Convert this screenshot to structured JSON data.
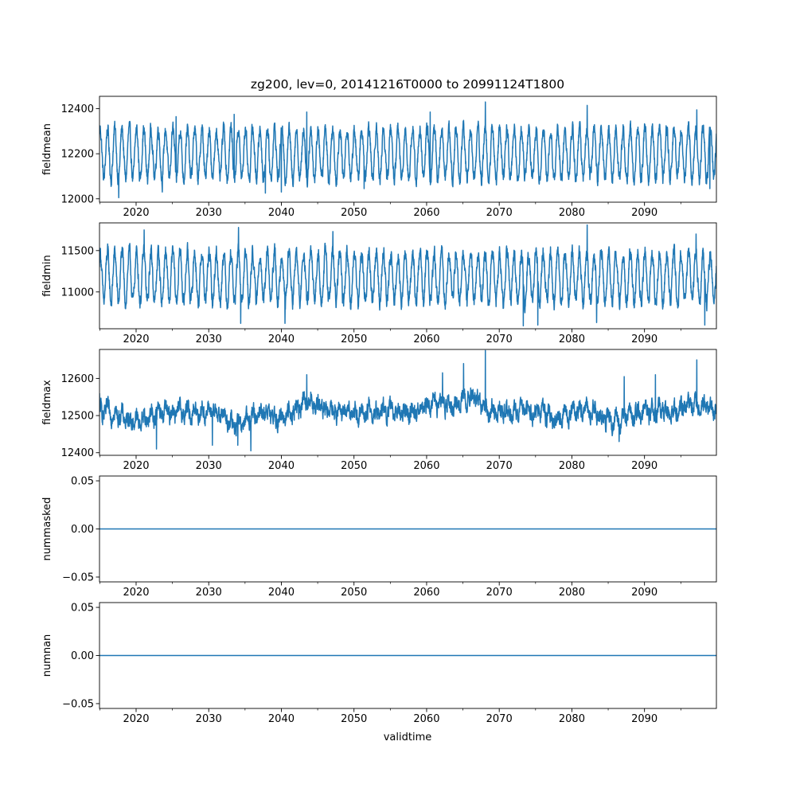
{
  "figure": {
    "title": "zg200, lev=0, 20141216T0000 to 20991124T1800",
    "xlabel": "validtime"
  },
  "colors": {
    "series": "#1f77b4",
    "axes": "#000000",
    "background": "#ffffff"
  },
  "chart_data": [
    {
      "type": "line",
      "ylabel": "fieldmean",
      "xlim": [
        2014.96,
        2099.9
      ],
      "ylim": [
        11985,
        12455
      ],
      "xticks": [
        2020,
        2030,
        2040,
        2050,
        2060,
        2070,
        2080,
        2090
      ],
      "xtick_labels": [
        "2020",
        "2030",
        "2040",
        "2050",
        "2060",
        "2070",
        "2080",
        "2090"
      ],
      "yticks": [
        12000,
        12200,
        12400
      ],
      "ytick_labels": [
        "12000",
        "12200",
        "12400"
      ],
      "grid": false,
      "series": [
        {
          "center": 12200,
          "seasonal_amplitude": 110,
          "noise": 25,
          "start": {
            "x": 2014.96,
            "y": 12290
          },
          "min": {
            "x": 2017.6,
            "y": 12005
          },
          "max": {
            "x": 2068.1,
            "y": 12430
          },
          "peaks": [
            {
              "x": 2025.5,
              "y": 12365
            },
            {
              "x": 2033.5,
              "y": 12375
            },
            {
              "x": 2043.5,
              "y": 12385
            },
            {
              "x": 2060.5,
              "y": 12385
            },
            {
              "x": 2082.1,
              "y": 12415
            },
            {
              "x": 2097.2,
              "y": 12395
            }
          ],
          "troughs": [
            {
              "x": 2037.8,
              "y": 12025
            },
            {
              "x": 2040.0,
              "y": 12030
            },
            {
              "x": 2023.6,
              "y": 12030
            },
            {
              "x": 2051.4,
              "y": 12045
            },
            {
              "x": 2099.0,
              "y": 12045
            }
          ]
        }
      ]
    },
    {
      "type": "line",
      "ylabel": "fieldmin",
      "xlim": [
        2014.96,
        2099.9
      ],
      "ylim": [
        10555,
        11835
      ],
      "xticks": [
        2020,
        2030,
        2040,
        2050,
        2060,
        2070,
        2080,
        2090
      ],
      "xtick_labels": [
        "2020",
        "2030",
        "2040",
        "2050",
        "2060",
        "2070",
        "2080",
        "2090"
      ],
      "yticks": [
        11000,
        11500
      ],
      "ytick_labels": [
        "11000",
        "11500"
      ],
      "grid": false,
      "series": [
        {
          "center": 11180,
          "seasonal_amplitude": 300,
          "noise": 75,
          "start": {
            "x": 2014.96,
            "y": 11300
          },
          "min": {
            "x": 2073.3,
            "y": 10590
          },
          "max": {
            "x": 2082.1,
            "y": 11810
          },
          "peaks": [
            {
              "x": 2034.1,
              "y": 11780
            },
            {
              "x": 2021.1,
              "y": 11750
            },
            {
              "x": 2047.1,
              "y": 11730
            },
            {
              "x": 2097.1,
              "y": 11700
            }
          ],
          "troughs": [
            {
              "x": 2034.4,
              "y": 10620
            },
            {
              "x": 2075.3,
              "y": 10600
            },
            {
              "x": 2083.4,
              "y": 10630
            },
            {
              "x": 2098.3,
              "y": 10600
            },
            {
              "x": 2040.5,
              "y": 10620
            }
          ]
        }
      ]
    },
    {
      "type": "line",
      "ylabel": "fieldmax",
      "xlim": [
        2014.96,
        2099.9
      ],
      "ylim": [
        12393,
        12678
      ],
      "xticks": [
        2020,
        2030,
        2040,
        2050,
        2060,
        2070,
        2080,
        2090
      ],
      "xtick_labels": [
        "2020",
        "2030",
        "2040",
        "2050",
        "2060",
        "2070",
        "2080",
        "2090"
      ],
      "yticks": [
        12400,
        12500,
        12600
      ],
      "ytick_labels": [
        "12400",
        "12500",
        "12600"
      ],
      "grid": false,
      "series": [
        {
          "center": 12510,
          "seasonal_amplitude": 12,
          "noise": 18,
          "start": {
            "x": 2014.96,
            "y": 12560
          },
          "min": {
            "x": 2035.8,
            "y": 12405
          },
          "max": {
            "x": 2068.1,
            "y": 12675
          },
          "peaks": [
            {
              "x": 2065.1,
              "y": 12640
            },
            {
              "x": 2097.2,
              "y": 12650
            },
            {
              "x": 2062.2,
              "y": 12615
            },
            {
              "x": 2043.5,
              "y": 12610
            },
            {
              "x": 2087.2,
              "y": 12605
            },
            {
              "x": 2091.5,
              "y": 12610
            }
          ],
          "troughs": [
            {
              "x": 2022.8,
              "y": 12410
            },
            {
              "x": 2034.0,
              "y": 12420
            },
            {
              "x": 2030.5,
              "y": 12420
            },
            {
              "x": 2086.5,
              "y": 12430
            }
          ],
          "slow_anomalies": [
            {
              "x": 2020.0,
              "width": 4.0,
              "dy": -25
            },
            {
              "x": 2034.0,
              "width": 3.0,
              "dy": -40
            },
            {
              "x": 2039.5,
              "width": 2.0,
              "dy": -20
            },
            {
              "x": 2044.0,
              "width": 3.0,
              "dy": 25
            },
            {
              "x": 2062.0,
              "width": 4.0,
              "dy": 25
            },
            {
              "x": 2066.0,
              "width": 3.0,
              "dy": 40
            },
            {
              "x": 2078.0,
              "width": 2.0,
              "dy": -25
            },
            {
              "x": 2086.0,
              "width": 3.0,
              "dy": -25
            },
            {
              "x": 2097.0,
              "width": 3.0,
              "dy": 25
            }
          ]
        }
      ]
    },
    {
      "type": "line",
      "ylabel": "nummasked",
      "xlim": [
        2014.96,
        2099.9
      ],
      "ylim": [
        -0.055,
        0.055
      ],
      "xticks": [
        2020,
        2030,
        2040,
        2050,
        2060,
        2070,
        2080,
        2090
      ],
      "xtick_labels": [
        "2020",
        "2030",
        "2040",
        "2050",
        "2060",
        "2070",
        "2080",
        "2090"
      ],
      "yticks": [
        -0.05,
        0.0,
        0.05
      ],
      "ytick_labels": [
        "−0.05",
        "0.00",
        "0.05"
      ],
      "grid": false,
      "series": [
        {
          "x": [
            2014.96,
            2099.9
          ],
          "y": [
            0,
            0
          ]
        }
      ]
    },
    {
      "type": "line",
      "ylabel": "numnan",
      "xlim": [
        2014.96,
        2099.9
      ],
      "ylim": [
        -0.055,
        0.055
      ],
      "xticks": [
        2020,
        2030,
        2040,
        2050,
        2060,
        2070,
        2080,
        2090
      ],
      "xtick_labels": [
        "2020",
        "2030",
        "2040",
        "2050",
        "2060",
        "2070",
        "2080",
        "2090"
      ],
      "yticks": [
        -0.05,
        0.0,
        0.05
      ],
      "ytick_labels": [
        "−0.05",
        "0.00",
        "0.05"
      ],
      "grid": false,
      "series": [
        {
          "x": [
            2014.96,
            2099.9
          ],
          "y": [
            0,
            0
          ]
        }
      ]
    }
  ]
}
